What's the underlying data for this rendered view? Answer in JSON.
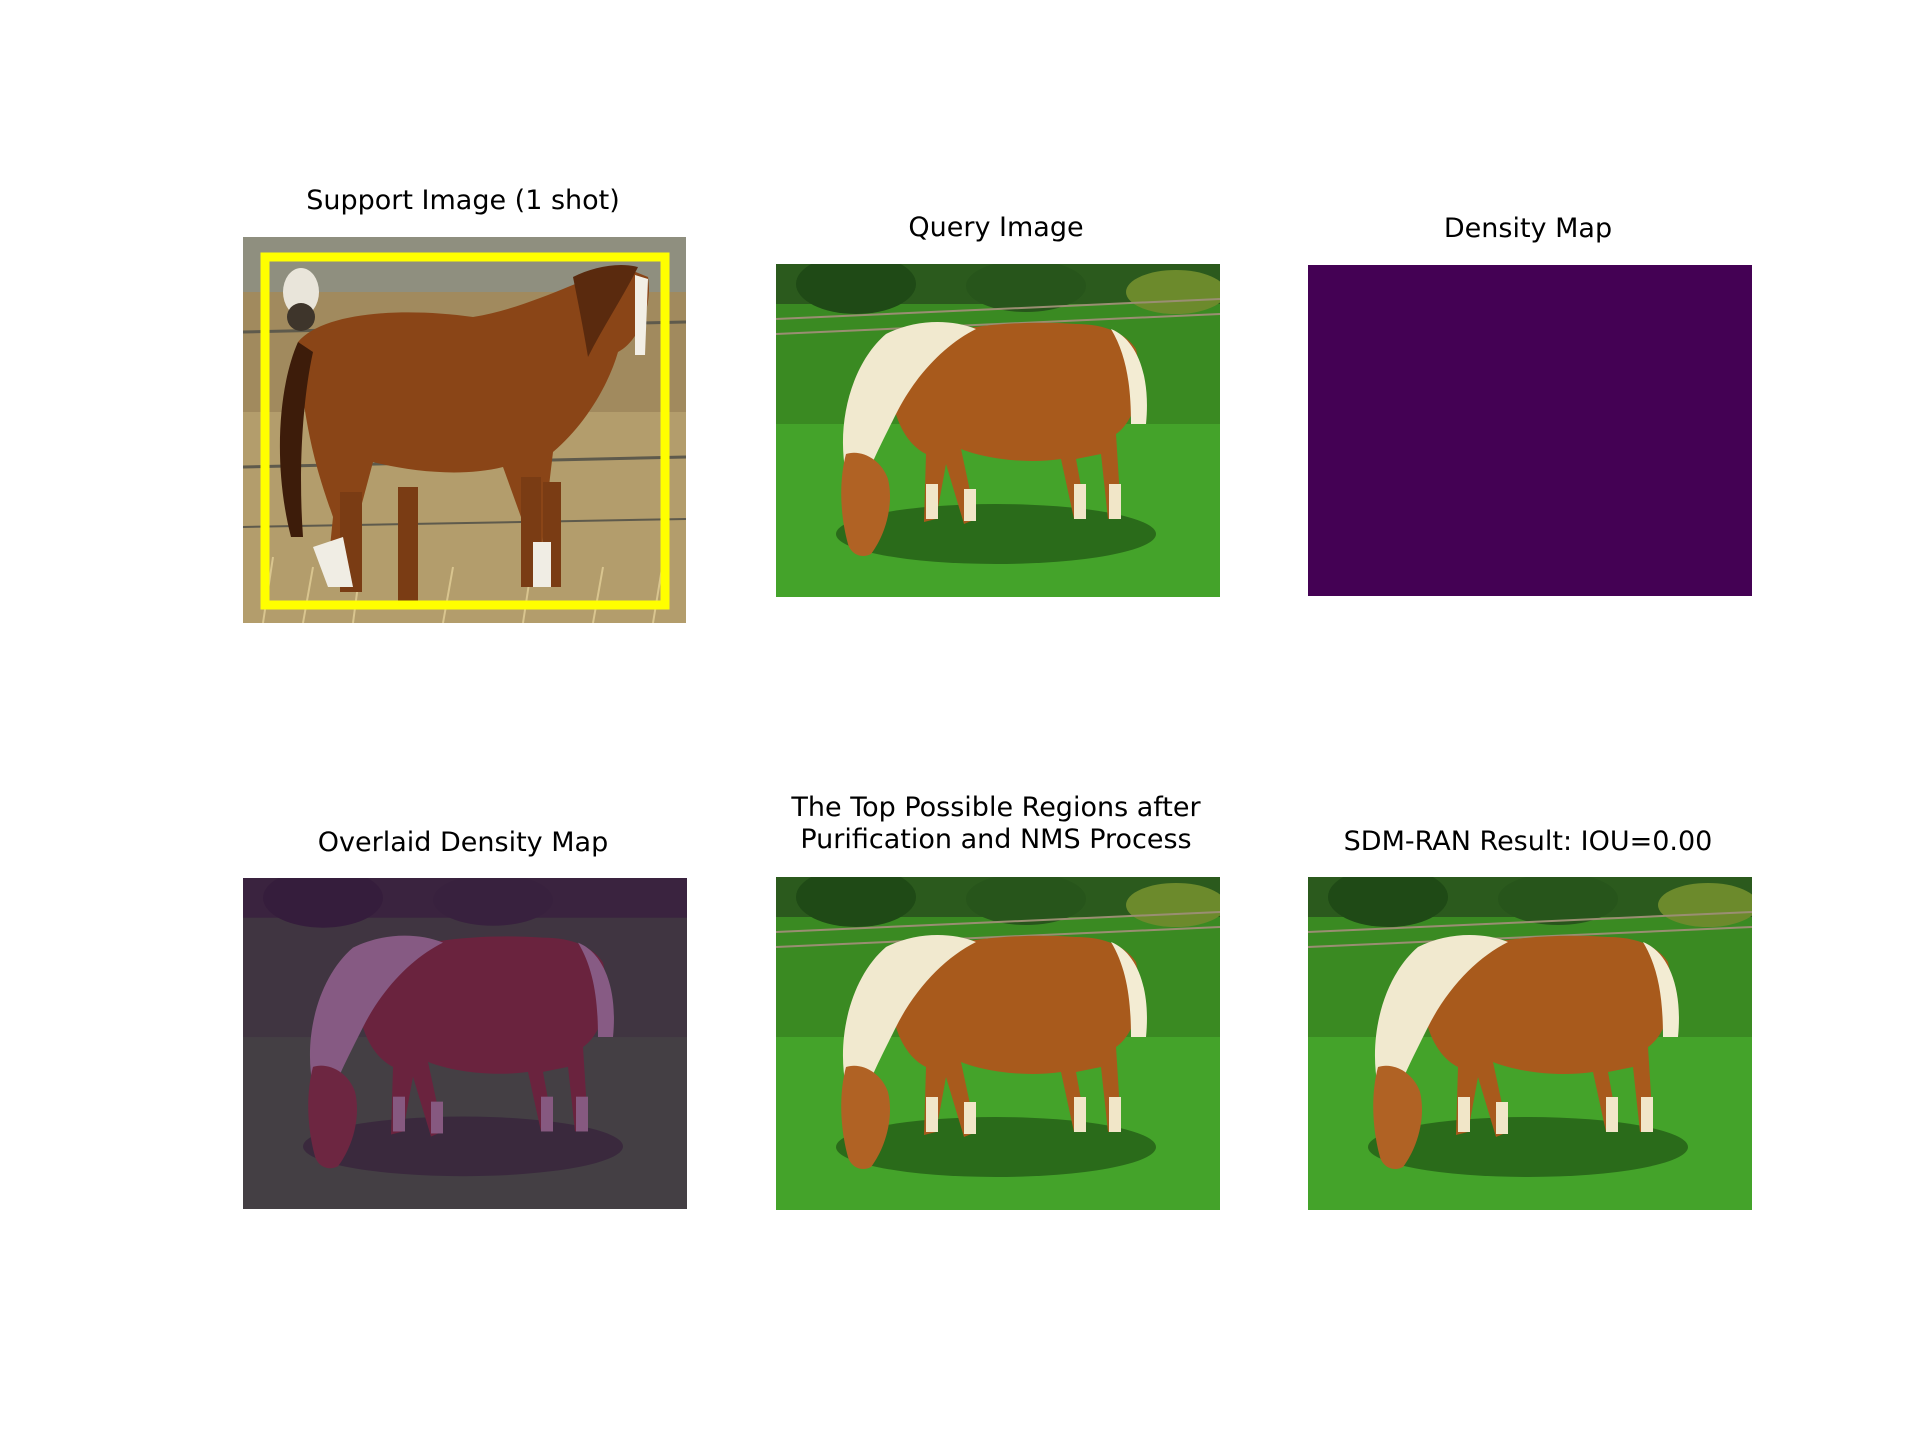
{
  "figure": {
    "colors": {
      "density_background": "#440154",
      "overlay_tint": "#440154",
      "support_box": "#ffff00",
      "grass": "#3a8a22",
      "coat": "#a85a1c",
      "mane": "#f1e9cf"
    },
    "panels": [
      {
        "title": "Support Image (1 shot)"
      },
      {
        "title": "Query Image"
      },
      {
        "title": "Density Map"
      },
      {
        "title": "Overlaid Density Map"
      },
      {
        "title": "The Top Possible Regions after\nPurification and NMS Process"
      },
      {
        "title": "SDM-RAN Result: IOU=0.00"
      }
    ]
  }
}
